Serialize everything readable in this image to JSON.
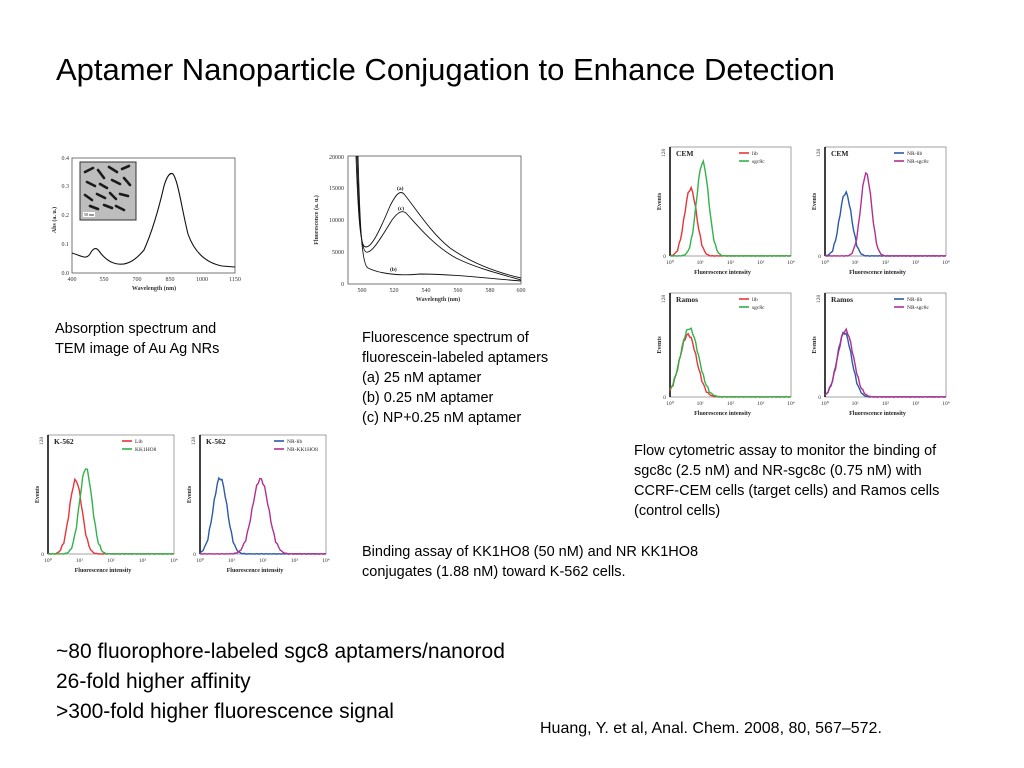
{
  "slide": {
    "title": "Aptamer Nanoparticle Conjugation to Enhance Detection"
  },
  "captions": {
    "absorption": [
      "Absorption spectrum and",
      "TEM image of Au Ag NRs"
    ],
    "fluorescence": [
      "Fluorescence spectrum of",
      "fluorescein-labeled aptamers",
      "(a) 25 nM aptamer",
      "(b) 0.25 nM aptamer",
      "(c) NP+0.25 nM aptamer"
    ],
    "flow": [
      "Flow cytometric assay to monitor the binding of",
      "sgc8c (2.5 nM) and NR-sgc8c (0.75 nM) with",
      "CCRF-CEM cells (target cells) and Ramos cells",
      "(control cells)"
    ],
    "binding": [
      "Binding assay of KK1HO8 (50 nM) and NR KK1HO8",
      "conjugates (1.88 nM) toward K-562 cells."
    ]
  },
  "bullets": [
    "~80 fluorophore-labeled sgc8 aptamers/nanorod",
    "26-fold higher affinity",
    ">300-fold higher fluorescence signal"
  ],
  "reference": "Huang, Y. et al, Anal. Chem. 2008, 80, 567–572.",
  "figures": {
    "absorption": {
      "xlabel": "Wavelength (nm)",
      "ylabel": "Abs (a. u.)",
      "xticks": [
        "400",
        "550",
        "700",
        "850",
        "1000",
        "1150"
      ],
      "yticks": [
        "0.0",
        "0.1",
        "0.2",
        "0.3",
        "0.4"
      ],
      "inset_scale": "50 nm"
    },
    "fluorescence": {
      "xlabel": "Wavelength (nm)",
      "ylabel": "Fluorescence (a. u.)",
      "xticks": [
        "500",
        "520",
        "540",
        "560",
        "580",
        "600"
      ],
      "yticks": [
        "0",
        "5000",
        "10000",
        "15000",
        "20000"
      ],
      "curve_labels": [
        "(a)",
        "(b)",
        "(c)"
      ]
    },
    "flow_panels": [
      {
        "title": "CEM",
        "legend": [
          "lib",
          "sgc8c"
        ],
        "colors": [
          "#e8343a",
          "#31b34a"
        ]
      },
      {
        "title": "CEM",
        "legend": [
          "NR-lib",
          "NR-sgc8c"
        ],
        "colors": [
          "#2b5aa8",
          "#b0308f"
        ]
      },
      {
        "title": "Ramos",
        "legend": [
          "lib",
          "sgc8c"
        ],
        "colors": [
          "#e8343a",
          "#31b34a"
        ]
      },
      {
        "title": "Ramos",
        "legend": [
          "NR-lib",
          "NR-sgc8c"
        ],
        "colors": [
          "#2b5aa8",
          "#b0308f"
        ]
      },
      {
        "title": "K-562",
        "legend": [
          "Lib",
          "KK1HO8"
        ],
        "colors": [
          "#e8343a",
          "#31b34a"
        ]
      },
      {
        "title": "K-562",
        "legend": [
          "NR-lib",
          "NR-KK1HO8"
        ],
        "colors": [
          "#2b5aa8",
          "#b0308f"
        ]
      }
    ],
    "flow_axes": {
      "xlabel": "Fluorescence intensity",
      "ylabel": "Events",
      "ymax": "128",
      "ymin": "0",
      "xticks": [
        "10⁰",
        "10¹",
        "10²",
        "10³",
        "10⁴"
      ]
    }
  }
}
